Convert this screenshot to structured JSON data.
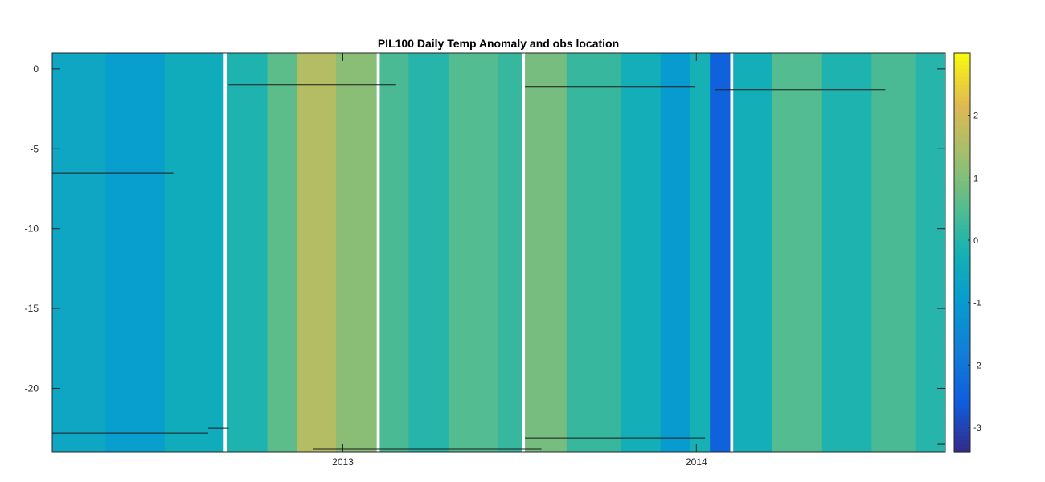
{
  "chart_data": {
    "type": "heatmap",
    "title": "PIL100 Daily Temp Anomaly and obs location",
    "xlabel": "",
    "ylabel": "",
    "x_range": [
      "2012-03-07",
      "2014-09-15"
    ],
    "ylim": [
      -24,
      1
    ],
    "x_ticks": [
      {
        "date": "2013-01-01",
        "label": "2013"
      },
      {
        "date": "2014-01-01",
        "label": "2014"
      }
    ],
    "y_ticks": [
      0,
      -5,
      -10,
      -15,
      -20
    ],
    "y_tick_labels": [
      "0",
      "-5",
      "-10",
      "-15",
      "-20"
    ],
    "colorbar": {
      "colormap": "parula",
      "limits": [
        -3.4,
        3
      ],
      "ticks": [
        2,
        1,
        0,
        -1,
        -2,
        -3
      ],
      "tick_labels": [
        "2",
        "1",
        "0",
        "-1",
        "-2",
        "-3"
      ]
    },
    "anomaly_segments": [
      {
        "start": "2012-03-07",
        "end": "2012-05-01",
        "value": -0.6
      },
      {
        "start": "2012-05-01",
        "end": "2012-07-01",
        "value": -0.9
      },
      {
        "start": "2012-07-01",
        "end": "2012-08-31",
        "value": -0.4
      },
      {
        "start": "2012-09-03",
        "end": "2012-10-15",
        "value": -0.1
      },
      {
        "start": "2012-10-15",
        "end": "2012-11-15",
        "value": 0.6
      },
      {
        "start": "2012-11-15",
        "end": "2012-12-25",
        "value": 1.6
      },
      {
        "start": "2012-12-25",
        "end": "2013-02-05",
        "value": 1.1
      },
      {
        "start": "2013-02-08",
        "end": "2013-03-10",
        "value": 0.4
      },
      {
        "start": "2013-03-10",
        "end": "2013-04-20",
        "value": 0.0
      },
      {
        "start": "2013-04-20",
        "end": "2013-06-10",
        "value": 0.5
      },
      {
        "start": "2013-06-10",
        "end": "2013-07-05",
        "value": 0.2
      },
      {
        "start": "2013-07-08",
        "end": "2013-08-20",
        "value": 0.9
      },
      {
        "start": "2013-08-20",
        "end": "2013-10-15",
        "value": 0.2
      },
      {
        "start": "2013-10-15",
        "end": "2013-11-25",
        "value": -0.3
      },
      {
        "start": "2013-11-25",
        "end": "2013-12-25",
        "value": -1.0
      },
      {
        "start": "2013-12-25",
        "end": "2014-01-15",
        "value": -0.2
      },
      {
        "start": "2014-01-15",
        "end": "2014-02-05",
        "value": -2.5
      },
      {
        "start": "2014-02-08",
        "end": "2014-03-20",
        "value": -0.3
      },
      {
        "start": "2014-03-20",
        "end": "2014-05-10",
        "value": 0.5
      },
      {
        "start": "2014-05-10",
        "end": "2014-07-01",
        "value": -0.1
      },
      {
        "start": "2014-07-01",
        "end": "2014-08-15",
        "value": 0.4
      },
      {
        "start": "2014-08-15",
        "end": "2014-09-15",
        "value": 0.0
      }
    ],
    "missing_data_gaps": [
      {
        "start": "2012-08-31",
        "end": "2012-09-03"
      },
      {
        "start": "2013-02-05",
        "end": "2013-02-08"
      },
      {
        "start": "2013-07-05",
        "end": "2013-07-08"
      },
      {
        "start": "2014-02-05",
        "end": "2014-02-08"
      }
    ],
    "obs_location_series": [
      {
        "start": "2012-03-07",
        "end": "2012-07-10",
        "depth": -6.5
      },
      {
        "start": "2012-03-07",
        "end": "2012-08-15",
        "depth": -22.8
      },
      {
        "start": "2012-08-15",
        "end": "2012-09-05",
        "depth": -22.5
      },
      {
        "start": "2012-09-05",
        "end": "2013-02-25",
        "depth": -1.0
      },
      {
        "start": "2012-12-01",
        "end": "2013-07-25",
        "depth": -23.8
      },
      {
        "start": "2013-07-08",
        "end": "2013-12-31",
        "depth": -1.1
      },
      {
        "start": "2013-07-08",
        "end": "2014-01-10",
        "depth": -23.1
      },
      {
        "start": "2014-01-20",
        "end": "2014-07-15",
        "depth": -1.3
      },
      {
        "start": "2014-09-07",
        "end": "2014-09-15",
        "depth": -23.5
      }
    ],
    "grid": false,
    "legend": "none"
  }
}
